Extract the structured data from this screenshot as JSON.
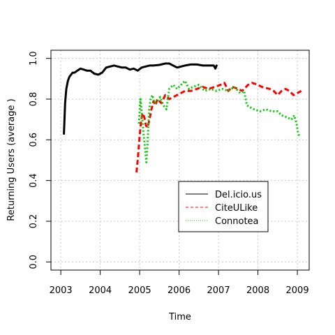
{
  "chart_data": {
    "type": "line",
    "title": "",
    "xlabel": "Time",
    "ylabel": "Returning Users (average    )",
    "xlim": [
      2002.75,
      2009.3
    ],
    "ylim": [
      -0.04,
      1.04
    ],
    "x_ticks": [
      2003,
      2004,
      2005,
      2006,
      2007,
      2008,
      2009
    ],
    "x_tick_labels": [
      "2003",
      "2004",
      "2005",
      "2006",
      "2007",
      "2008",
      "2009"
    ],
    "y_ticks": [
      0.0,
      0.2,
      0.4,
      0.6,
      0.8,
      1.0
    ],
    "y_tick_labels": [
      "0.0",
      "0.2",
      "0.4",
      "0.6",
      "0.8",
      "1.0"
    ],
    "grid": true,
    "legend_position": "bottom-right",
    "series": [
      {
        "name": "Del.icio.us",
        "color": "#000000",
        "style": "solid",
        "x": [
          2003.08,
          2003.11,
          2003.14,
          2003.18,
          2003.22,
          2003.26,
          2003.3,
          2003.35,
          2003.42,
          2003.5,
          2003.58,
          2003.66,
          2003.75,
          2003.85,
          2003.95,
          2004.05,
          2004.15,
          2004.25,
          2004.35,
          2004.45,
          2004.55,
          2004.65,
          2004.75,
          2004.85,
          2004.95,
          2005.05,
          2005.15,
          2005.25,
          2005.35,
          2005.5,
          2005.65,
          2005.75,
          2005.85,
          2005.95,
          2006.05,
          2006.15,
          2006.3,
          2006.45,
          2006.6,
          2006.75,
          2006.88,
          2006.92,
          2006.95
        ],
        "y": [
          0.63,
          0.78,
          0.85,
          0.89,
          0.91,
          0.92,
          0.93,
          0.93,
          0.94,
          0.95,
          0.945,
          0.94,
          0.94,
          0.925,
          0.92,
          0.93,
          0.955,
          0.96,
          0.965,
          0.96,
          0.955,
          0.955,
          0.945,
          0.95,
          0.94,
          0.955,
          0.96,
          0.965,
          0.965,
          0.968,
          0.975,
          0.975,
          0.965,
          0.955,
          0.96,
          0.965,
          0.97,
          0.97,
          0.965,
          0.965,
          0.965,
          0.95,
          0.965
        ]
      },
      {
        "name": "CiteULike",
        "color": "#ff0000",
        "style": "dashed",
        "x": [
          2004.92,
          2004.96,
          2005.0,
          2005.04,
          2005.08,
          2005.12,
          2005.16,
          2005.2,
          2005.25,
          2005.3,
          2005.35,
          2005.4,
          2005.45,
          2005.55,
          2005.65,
          2005.75,
          2005.85,
          2005.95,
          2006.05,
          2006.15,
          2006.3,
          2006.45,
          2006.6,
          2006.75,
          2006.9,
          2007.05,
          2007.15,
          2007.25,
          2007.35,
          2007.5,
          2007.6,
          2007.75,
          2007.85,
          2008.0,
          2008.1,
          2008.2,
          2008.3,
          2008.4,
          2008.5,
          2008.6,
          2008.7,
          2008.8,
          2008.9,
          2009.0,
          2009.1
        ],
        "y": [
          0.44,
          0.52,
          0.62,
          0.7,
          0.73,
          0.71,
          0.67,
          0.66,
          0.7,
          0.75,
          0.79,
          0.77,
          0.8,
          0.78,
          0.82,
          0.8,
          0.81,
          0.82,
          0.83,
          0.84,
          0.84,
          0.85,
          0.86,
          0.85,
          0.86,
          0.87,
          0.88,
          0.84,
          0.86,
          0.85,
          0.84,
          0.87,
          0.88,
          0.87,
          0.86,
          0.855,
          0.85,
          0.84,
          0.82,
          0.84,
          0.85,
          0.84,
          0.82,
          0.83,
          0.84
        ]
      },
      {
        "name": "Connotea",
        "color": "#00cc00",
        "style": "dotted",
        "x": [
          2004.98,
          2005.02,
          2005.06,
          2005.1,
          2005.14,
          2005.17,
          2005.2,
          2005.24,
          2005.28,
          2005.32,
          2005.38,
          2005.45,
          2005.52,
          2005.6,
          2005.68,
          2005.75,
          2005.85,
          2005.95,
          2006.05,
          2006.15,
          2006.25,
          2006.35,
          2006.5,
          2006.65,
          2006.8,
          2006.95,
          2007.1,
          2007.25,
          2007.4,
          2007.55,
          2007.65,
          2007.72,
          2007.8,
          2007.9,
          2008.05,
          2008.2,
          2008.35,
          2008.5,
          2008.6,
          2008.75,
          2008.85,
          2008.92,
          2008.98,
          2009.02,
          2009.05
        ],
        "y": [
          0.68,
          0.8,
          0.72,
          0.63,
          0.55,
          0.49,
          0.58,
          0.75,
          0.8,
          0.82,
          0.78,
          0.79,
          0.81,
          0.77,
          0.75,
          0.85,
          0.87,
          0.85,
          0.87,
          0.89,
          0.85,
          0.86,
          0.87,
          0.84,
          0.85,
          0.84,
          0.85,
          0.84,
          0.86,
          0.83,
          0.84,
          0.77,
          0.76,
          0.75,
          0.74,
          0.75,
          0.74,
          0.74,
          0.72,
          0.71,
          0.7,
          0.72,
          0.68,
          0.63,
          0.62
        ]
      }
    ]
  }
}
